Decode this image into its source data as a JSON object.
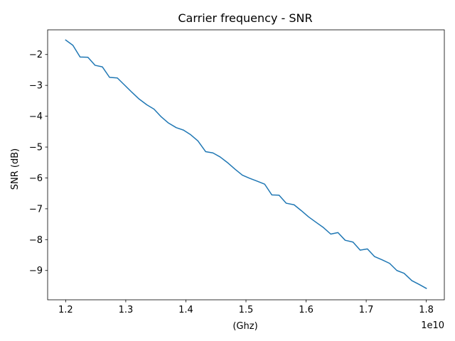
{
  "chart_data": {
    "type": "line",
    "title": "Carrier frequency - SNR",
    "xlabel": "(Ghz)",
    "ylabel": "SNR (dB)",
    "x_offset_label": "1e10",
    "xlim": [
      1.17,
      1.83
    ],
    "ylim": [
      -9.95,
      -1.2
    ],
    "grid": false,
    "line_color": "#1f77b4",
    "x_ticks": [
      1.2,
      1.3,
      1.4,
      1.5,
      1.6,
      1.7,
      1.8
    ],
    "x_tick_labels": [
      "1.2",
      "1.3",
      "1.4",
      "1.5",
      "1.6",
      "1.7",
      "1.8"
    ],
    "y_ticks": [
      -2,
      -3,
      -4,
      -5,
      -6,
      -7,
      -8,
      -9
    ],
    "y_tick_labels": [
      "−2",
      "−3",
      "−4",
      "−5",
      "−6",
      "−7",
      "−8",
      "−9"
    ],
    "series": [
      {
        "x": [
          1.2,
          1.212,
          1.224,
          1.237,
          1.249,
          1.261,
          1.273,
          1.286,
          1.298,
          1.31,
          1.322,
          1.335,
          1.347,
          1.359,
          1.371,
          1.384,
          1.396,
          1.408,
          1.42,
          1.433,
          1.445,
          1.457,
          1.469,
          1.482,
          1.494,
          1.506,
          1.518,
          1.531,
          1.543,
          1.555,
          1.567,
          1.58,
          1.592,
          1.604,
          1.616,
          1.629,
          1.641,
          1.653,
          1.665,
          1.678,
          1.69,
          1.702,
          1.714,
          1.727,
          1.739,
          1.751,
          1.763,
          1.776,
          1.788,
          1.8
        ],
        "y": [
          -1.53,
          -1.7,
          -2.08,
          -2.09,
          -2.35,
          -2.4,
          -2.74,
          -2.76,
          -2.99,
          -3.22,
          -3.44,
          -3.63,
          -3.77,
          -4.02,
          -4.22,
          -4.37,
          -4.45,
          -4.6,
          -4.8,
          -5.15,
          -5.19,
          -5.32,
          -5.5,
          -5.72,
          -5.91,
          -6.01,
          -6.1,
          -6.2,
          -6.55,
          -6.56,
          -6.82,
          -6.87,
          -7.06,
          -7.26,
          -7.43,
          -7.61,
          -7.82,
          -7.77,
          -8.02,
          -8.08,
          -8.34,
          -8.3,
          -8.55,
          -8.66,
          -8.77,
          -9.0,
          -9.09,
          -9.33,
          -9.45,
          -9.58
        ]
      }
    ]
  }
}
